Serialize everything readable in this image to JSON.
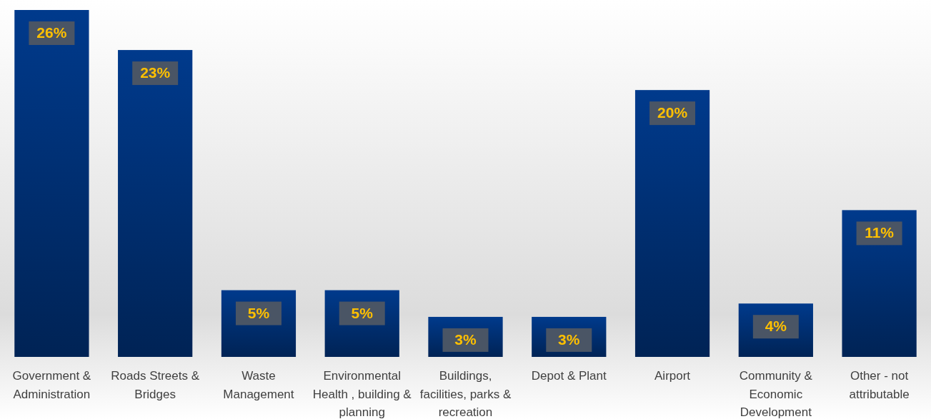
{
  "chart_data": {
    "type": "bar",
    "categories": [
      "Government & Administration",
      "Roads Streets & Bridges",
      "Waste Management",
      "Environmental Health , building & planning",
      "Buildings, facilities, parks & recreation",
      "Depot & Plant",
      "Airport",
      "Community & Economic Development",
      "Other - not attributable"
    ],
    "values": [
      26,
      23,
      5,
      5,
      3,
      3,
      20,
      4,
      11
    ],
    "value_labels": [
      "26%",
      "23%",
      "5%",
      "5%",
      "3%",
      "3%",
      "20%",
      "4%",
      "11%"
    ],
    "color": "#003a8c"
  }
}
